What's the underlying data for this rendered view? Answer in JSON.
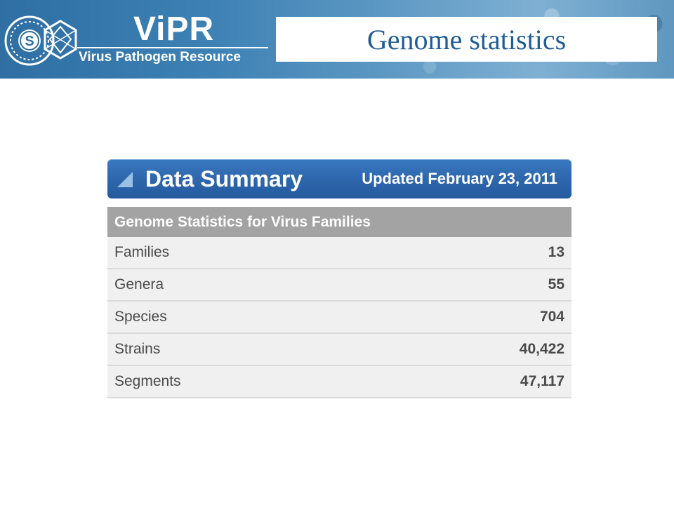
{
  "header": {
    "brand_name": "ViPR",
    "brand_subtitle": "Virus Pathogen Resource",
    "slide_title": "Genome statistics",
    "logo_letter": "S"
  },
  "summary": {
    "title": "Data Summary",
    "updated": "Updated February 23, 2011"
  },
  "table": {
    "header": "Genome Statistics for Virus Families",
    "rows": [
      {
        "label": "Families",
        "value": "13"
      },
      {
        "label": "Genera",
        "value": "55"
      },
      {
        "label": "Species",
        "value": "704"
      },
      {
        "label": "Strains",
        "value": "40,422"
      },
      {
        "label": "Segments",
        "value": "47,117"
      }
    ]
  },
  "colors": {
    "banner": "#3c80b4",
    "title_text": "#1f5d94",
    "summary_bar": "#2e67ad",
    "table_header": "#a3a3a3"
  }
}
